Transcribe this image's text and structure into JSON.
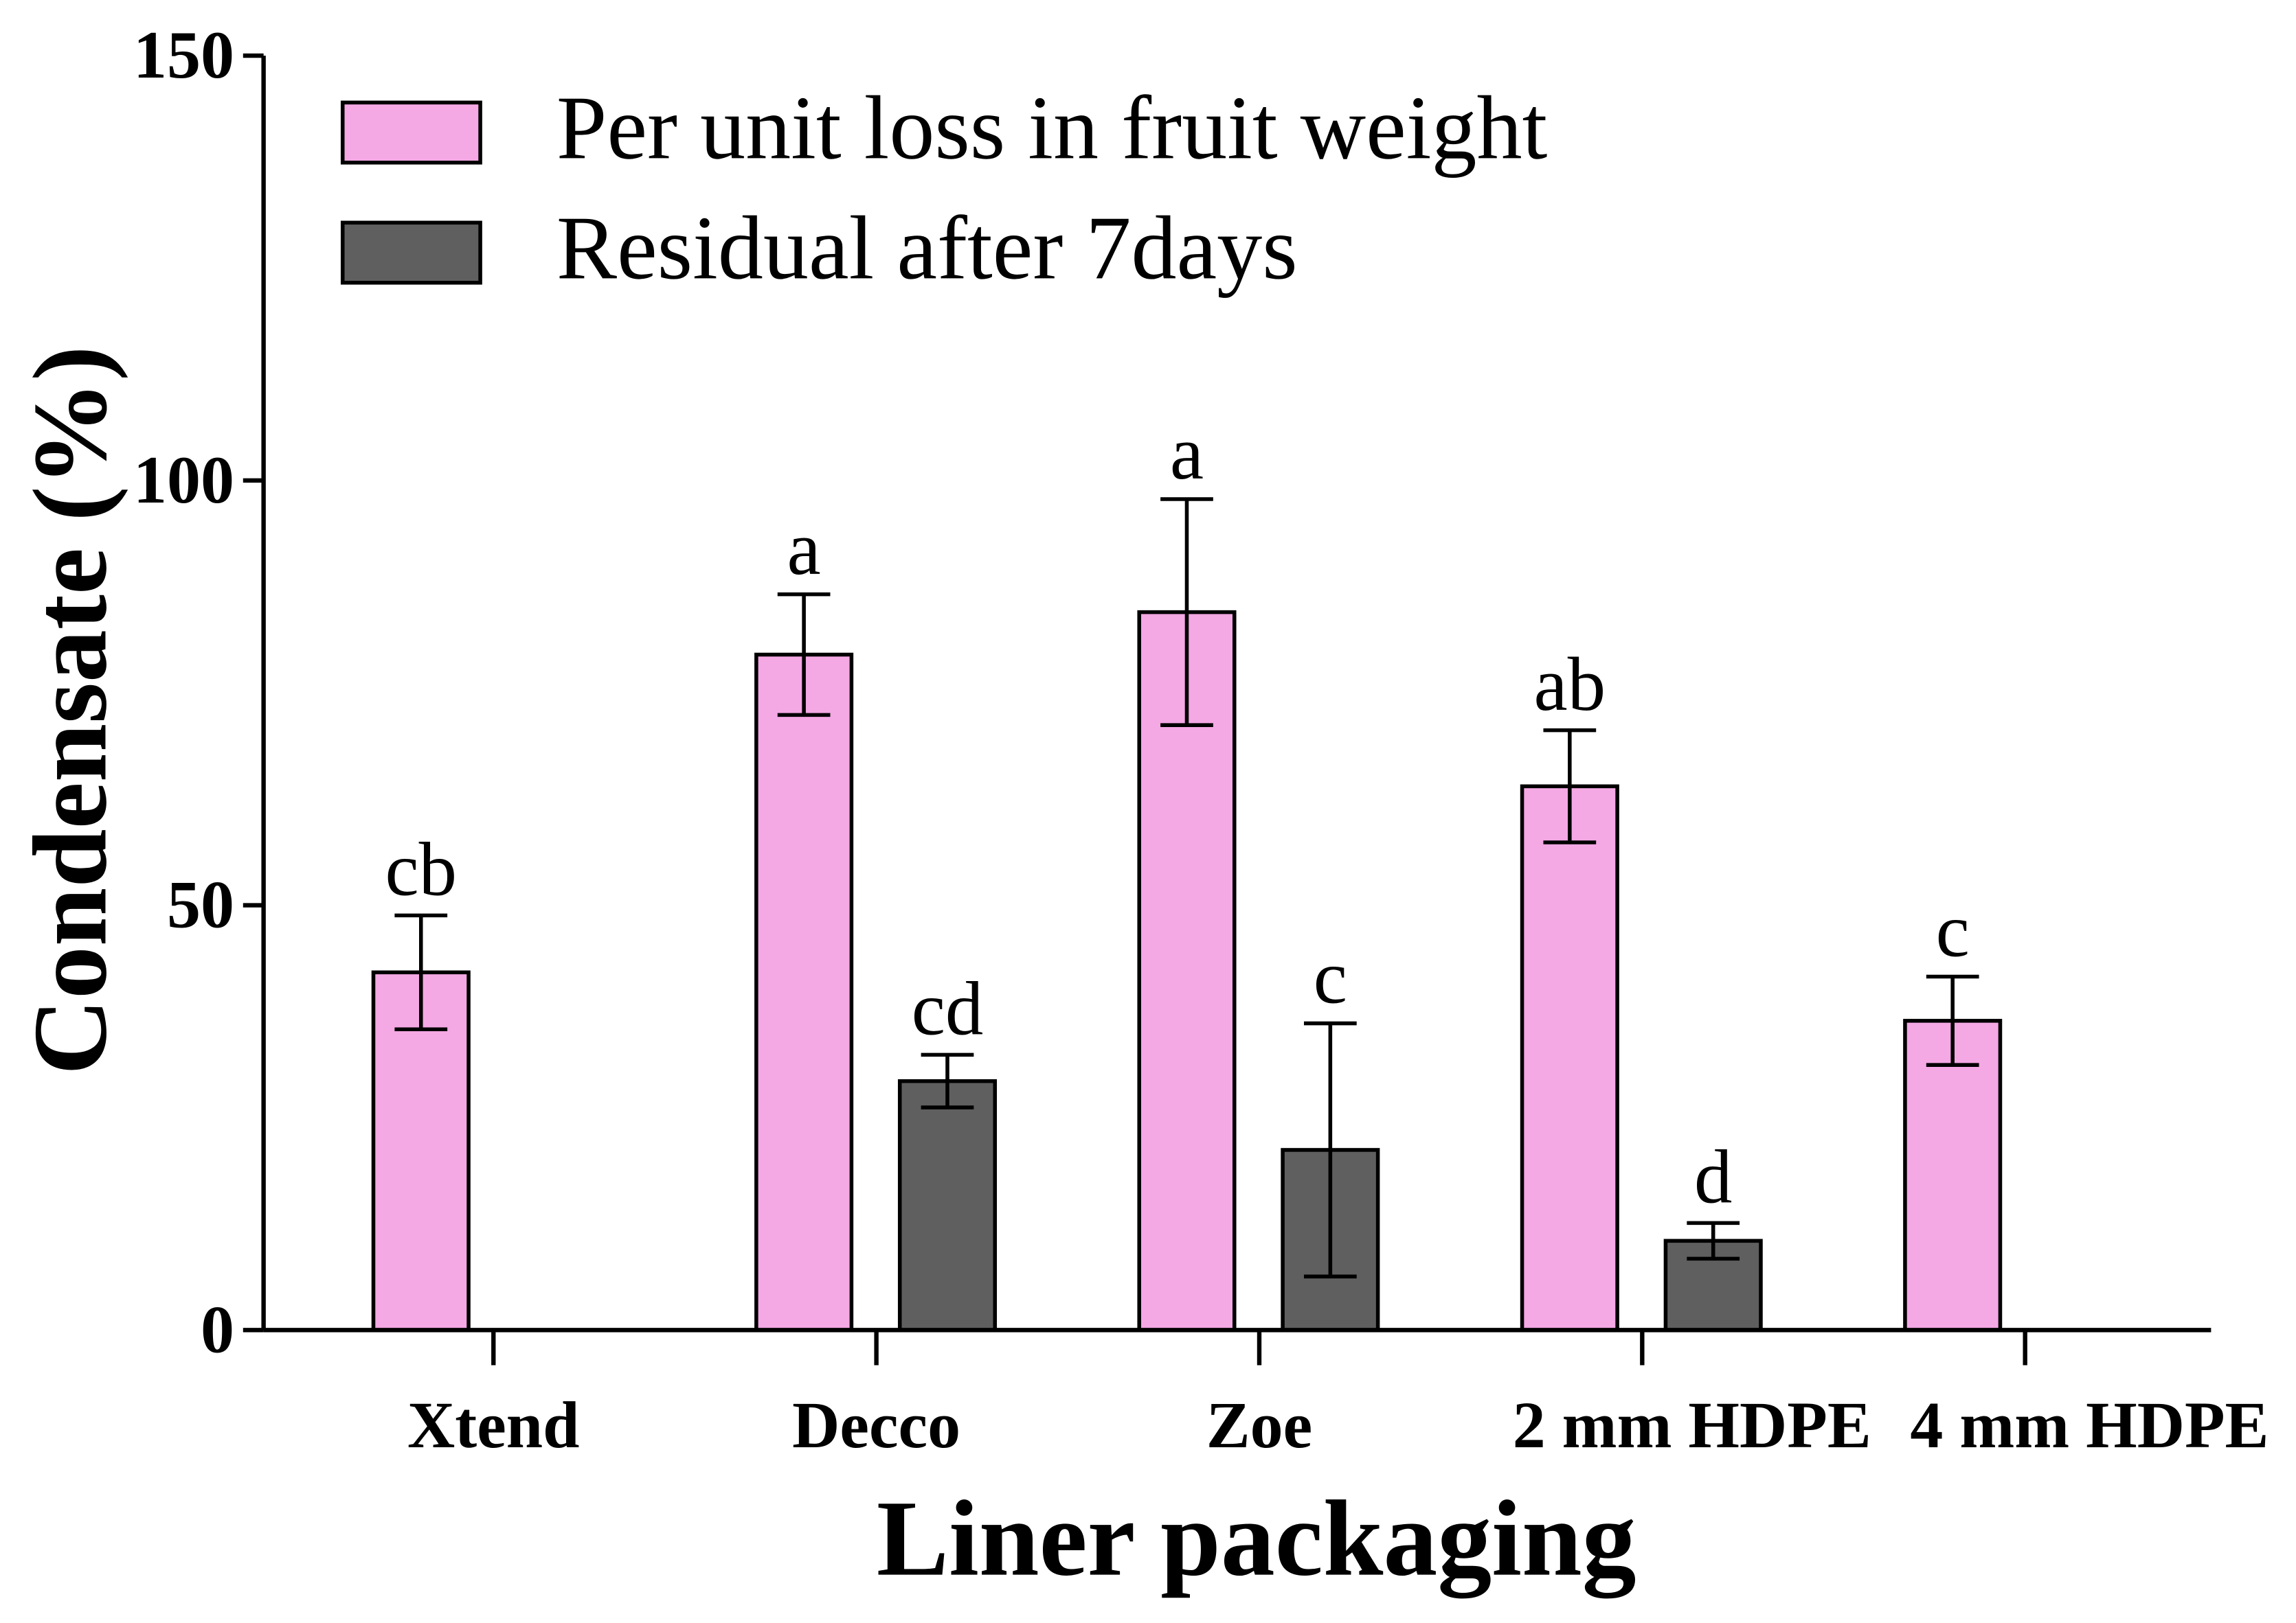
{
  "chart_data": {
    "type": "bar",
    "title": "",
    "xlabel": "Liner packaging",
    "ylabel": "Condensate (%)",
    "ylim": [
      0,
      150
    ],
    "yticks": [
      0,
      50,
      100,
      150
    ],
    "grid": false,
    "legend_position": "top-left",
    "categories": [
      "Xtend",
      "Decco",
      "Zoe",
      "2 mm HDPE",
      "4 mm HDPE"
    ],
    "series": [
      {
        "name": "Per unit loss in fruit weight",
        "color": "#F4A8E4",
        "values": [
          42.1,
          79.5,
          84.5,
          64.0,
          36.4
        ],
        "errors": [
          6.7,
          7.1,
          13.3,
          6.6,
          5.2
        ],
        "significance": [
          "cb",
          "a",
          "a",
          "ab",
          "c"
        ]
      },
      {
        "name": "Residual after 7days",
        "color": "#5F5F5F",
        "values": [
          null,
          29.3,
          21.2,
          10.5,
          null
        ],
        "errors": [
          null,
          3.1,
          14.9,
          2.1,
          null
        ],
        "significance": [
          null,
          "cd",
          "c",
          "d",
          null
        ]
      }
    ]
  }
}
